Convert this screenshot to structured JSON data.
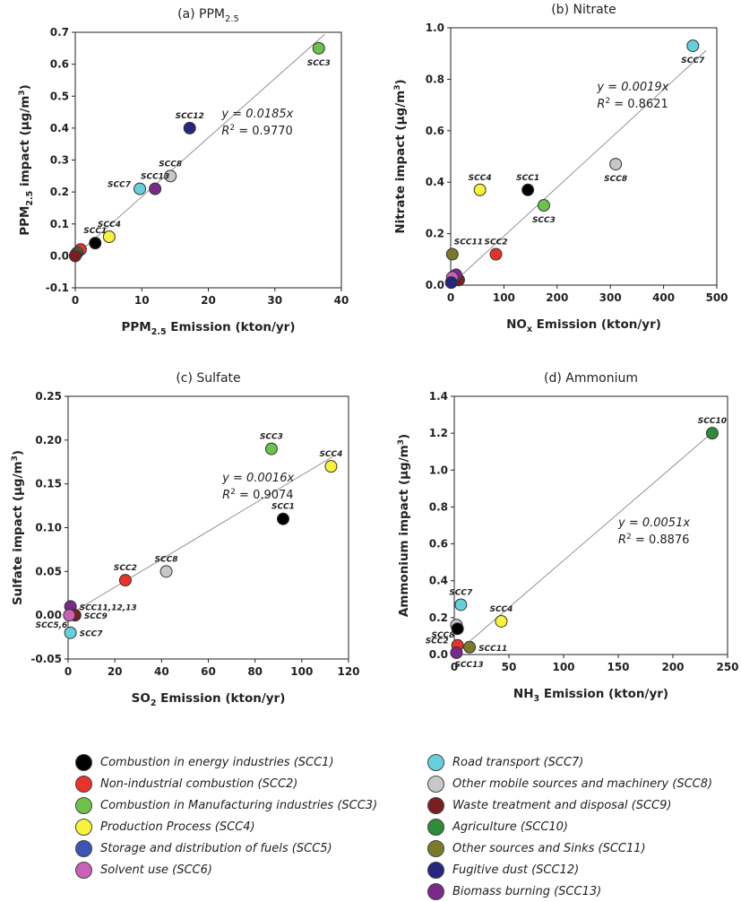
{
  "colors": {
    "SCC1": "#000000",
    "SCC2": "#e8322a",
    "SCC3": "#6cc24a",
    "SCC4": "#f7f23a",
    "SCC5": "#3d55b5",
    "SCC6": "#c861b8",
    "SCC7": "#66cfdc",
    "SCC8": "#c8c8c8",
    "SCC9": "#7a1f1f",
    "SCC10": "#2e8b3a",
    "SCC11": "#7a7a2a",
    "SCC12": "#262680",
    "SCC13": "#7a2a8a"
  },
  "legend": {
    "left": [
      {
        "key": "SCC1",
        "label": "Combustion in energy industries (SCC1)"
      },
      {
        "key": "SCC2",
        "label": "Non-industrial combustion (SCC2)"
      },
      {
        "key": "SCC3",
        "label": "Combustion in Manufacturing industries (SCC3)"
      },
      {
        "key": "SCC4",
        "label": "Production Process (SCC4)"
      },
      {
        "key": "SCC5",
        "label": "Storage and distribution of fuels (SCC5)"
      },
      {
        "key": "SCC6",
        "label": "Solvent use (SCC6)"
      }
    ],
    "right": [
      {
        "key": "SCC7",
        "label": "Road transport (SCC7)"
      },
      {
        "key": "SCC8",
        "label": "Other mobile sources and machinery (SCC8)"
      },
      {
        "key": "SCC9",
        "label": "Waste treatment and disposal (SCC9)"
      },
      {
        "key": "SCC10",
        "label": "Agriculture (SCC10)"
      },
      {
        "key": "SCC11",
        "label": "Other sources and Sinks (SCC11)"
      },
      {
        "key": "SCC12",
        "label": "Fugitive dust (SCC12)"
      },
      {
        "key": "SCC13",
        "label": "Biomass burning (SCC13)"
      }
    ]
  },
  "chart_data": [
    {
      "type": "scatter",
      "title": "(a) PPM",
      "title_sub": "2.5",
      "xlabel": "PPM",
      "xlabel_sub": "2.5",
      "xlabel_rest": " Emission (kton/yr)",
      "ylabel": "PPM",
      "ylabel_sub": "2.5",
      "ylabel_rest": " impact (μg/m",
      "ylabel_sup": "3",
      "ylabel_end": ")",
      "xlim": [
        0,
        40
      ],
      "ylim": [
        -0.1,
        0.7
      ],
      "xticks": [
        0,
        10,
        20,
        30,
        40
      ],
      "yticks": [
        -0.1,
        0,
        0.1,
        0.2,
        0.3,
        0.4,
        0.5,
        0.6,
        0.7
      ],
      "ytick_labels": [
        "-0.1",
        "0.0",
        "0.1",
        "0.2",
        "0.3",
        "0.4",
        "0.5",
        "0.6",
        "0.7"
      ],
      "fit": {
        "slope": 0.0185,
        "x_range": [
          0,
          37.5
        ]
      },
      "equation": "y = 0.0185x",
      "r2_label": "R",
      "r2_value": " = 0.9770",
      "points": [
        {
          "key": "SCC3",
          "x": 36.6,
          "y": 0.65,
          "label": "SCC3",
          "label_pos": "below"
        },
        {
          "key": "SCC12",
          "x": 17.2,
          "y": 0.4,
          "label": "SCC12",
          "label_pos": "above"
        },
        {
          "key": "SCC8",
          "x": 14.3,
          "y": 0.25,
          "label": "SCC8",
          "label_pos": "above"
        },
        {
          "key": "SCC13",
          "x": 12.0,
          "y": 0.21,
          "label": "SCC13",
          "label_pos": "above"
        },
        {
          "key": "SCC7",
          "x": 9.7,
          "y": 0.21,
          "label": "SCC7",
          "label_pos": "left"
        },
        {
          "key": "SCC4",
          "x": 5.1,
          "y": 0.06,
          "label": "SCC4",
          "label_pos": "above"
        },
        {
          "key": "SCC1",
          "x": 3.0,
          "y": 0.04,
          "label": "SCC1",
          "label_pos": "above"
        },
        {
          "key": "SCC2",
          "x": 0.8,
          "y": 0.02,
          "label": "",
          "label_pos": "none"
        },
        {
          "key": "SCC10",
          "x": 0.3,
          "y": 0.01,
          "label": "",
          "label_pos": "none"
        },
        {
          "key": "SCC11",
          "x": 0.1,
          "y": 0.005,
          "label": "",
          "label_pos": "none"
        },
        {
          "key": "SCC9",
          "x": 0.0,
          "y": 0.0,
          "label": "",
          "label_pos": "none"
        }
      ]
    },
    {
      "type": "scatter",
      "title": "(b) Nitrate",
      "xlabel": "NO",
      "xlabel_sub": "x",
      "xlabel_rest": " Emission (kton/yr)",
      "ylabel": "Nitrate impact (μg/m",
      "ylabel_sup": "3",
      "ylabel_end": ")",
      "xlim": [
        0,
        500
      ],
      "ylim": [
        0,
        1.0
      ],
      "xticks": [
        0,
        100,
        200,
        300,
        400,
        500
      ],
      "yticks": [
        0,
        0.2,
        0.4,
        0.6,
        0.8,
        1.0
      ],
      "ytick_labels": [
        "0.0",
        "0.2",
        "0.4",
        "0.6",
        "0.8",
        "1.0"
      ],
      "fit": {
        "slope": 0.0019,
        "x_range": [
          0,
          480
        ]
      },
      "equation": "y = 0.0019x",
      "r2_label": "R",
      "r2_value": " = 0.8621",
      "points": [
        {
          "key": "SCC7",
          "x": 455,
          "y": 0.93,
          "label": "SCC7",
          "label_pos": "below"
        },
        {
          "key": "SCC8",
          "x": 310,
          "y": 0.47,
          "label": "SCC8",
          "label_pos": "below"
        },
        {
          "key": "SCC1",
          "x": 145,
          "y": 0.37,
          "label": "SCC1",
          "label_pos": "above"
        },
        {
          "key": "SCC4",
          "x": 55,
          "y": 0.37,
          "label": "SCC4",
          "label_pos": "above"
        },
        {
          "key": "SCC3",
          "x": 175,
          "y": 0.31,
          "label": "SCC3",
          "label_pos": "below"
        },
        {
          "key": "SCC2",
          "x": 85,
          "y": 0.12,
          "label": "SCC2",
          "label_pos": "above"
        },
        {
          "key": "SCC11",
          "x": 3,
          "y": 0.12,
          "label": "SCC11",
          "label_pos": "aboveright"
        },
        {
          "key": "SCC9",
          "x": 15,
          "y": 0.02,
          "label": "",
          "label_pos": "none"
        },
        {
          "key": "SCC13",
          "x": 10,
          "y": 0.04,
          "label": "",
          "label_pos": "none"
        },
        {
          "key": "SCC6",
          "x": 3,
          "y": 0.03,
          "label": "",
          "label_pos": "none"
        },
        {
          "key": "SCC12",
          "x": 1,
          "y": 0.01,
          "label": "",
          "label_pos": "none"
        }
      ]
    },
    {
      "type": "scatter",
      "title": "(c) Sulfate",
      "xlabel": "SO",
      "xlabel_sub": "2",
      "xlabel_rest": " Emission (kton/yr)",
      "ylabel": "Sulfate impact (μg/m",
      "ylabel_sup": "3",
      "ylabel_end": ")",
      "xlim": [
        0,
        120
      ],
      "ylim": [
        -0.05,
        0.25
      ],
      "xticks": [
        0,
        20,
        40,
        60,
        80,
        100,
        120
      ],
      "yticks": [
        -0.05,
        0,
        0.05,
        0.1,
        0.15,
        0.2,
        0.25
      ],
      "ytick_labels": [
        "-0.05",
        "0.00",
        "0.05",
        "0.10",
        "0.15",
        "0.20",
        "0.25"
      ],
      "fit": {
        "slope": 0.0016,
        "x_range": [
          0,
          113
        ]
      },
      "equation": "y = 0.0016x",
      "r2_label": "R",
      "r2_value": " = 0.9074",
      "points": [
        {
          "key": "SCC3",
          "x": 87,
          "y": 0.19,
          "label": "SCC3",
          "label_pos": "above"
        },
        {
          "key": "SCC4",
          "x": 112.5,
          "y": 0.17,
          "label": "SCC4",
          "label_pos": "above"
        },
        {
          "key": "SCC1",
          "x": 92,
          "y": 0.11,
          "label": "SCC1",
          "label_pos": "above"
        },
        {
          "key": "SCC8",
          "x": 42,
          "y": 0.05,
          "label": "SCC8",
          "label_pos": "above"
        },
        {
          "key": "SCC2",
          "x": 24.5,
          "y": 0.04,
          "label": "SCC2",
          "label_pos": "above"
        },
        {
          "key": "SCC13",
          "x": 1,
          "y": 0.01,
          "label": "SCC11,12,13",
          "label_pos": "right"
        },
        {
          "key": "SCC9",
          "x": 3,
          "y": 0.0,
          "label": "SCC9",
          "label_pos": "right"
        },
        {
          "key": "SCC6",
          "x": 0.5,
          "y": 0.0,
          "label": "SCC5,6",
          "label_pos": "belowleft"
        },
        {
          "key": "SCC7",
          "x": 1,
          "y": -0.02,
          "label": "SCC7",
          "label_pos": "right"
        }
      ]
    },
    {
      "type": "scatter",
      "title": "(d) Ammonium",
      "xlabel": "NH",
      "xlabel_sub": "3",
      "xlabel_rest": " Emission (kton/yr)",
      "ylabel": "Ammonium impact (μg/m",
      "ylabel_sup": "3",
      "ylabel_end": ")",
      "xlim": [
        0,
        250
      ],
      "ylim": [
        0,
        1.4
      ],
      "xticks": [
        0,
        50,
        100,
        150,
        200,
        250
      ],
      "yticks": [
        0,
        0.2,
        0.4,
        0.6,
        0.8,
        1.0,
        1.2,
        1.4
      ],
      "ytick_labels": [
        "0.0",
        "0.2",
        "0.4",
        "0.6",
        "0.8",
        "1.0",
        "1.2",
        "1.4"
      ],
      "fit": {
        "slope": 0.0051,
        "x_range": [
          0,
          237
        ]
      },
      "equation": "y = 0.0051x",
      "r2_label": "R",
      "r2_value": " = 0.8876",
      "points": [
        {
          "key": "SCC10",
          "x": 236,
          "y": 1.2,
          "label": "SCC10",
          "label_pos": "above"
        },
        {
          "key": "SCC7",
          "x": 6,
          "y": 0.27,
          "label": "SCC7",
          "label_pos": "above"
        },
        {
          "key": "SCC4",
          "x": 43,
          "y": 0.18,
          "label": "SCC4",
          "label_pos": "above"
        },
        {
          "key": "SCC8",
          "x": 2,
          "y": 0.16,
          "label": "SCC8",
          "label_pos": "belowleft"
        },
        {
          "key": "SCC1",
          "x": 3,
          "y": 0.14,
          "label": "",
          "label_pos": "none"
        },
        {
          "key": "SCC2",
          "x": 3,
          "y": 0.05,
          "label": "SCC2",
          "label_pos": "left"
        },
        {
          "key": "SCC11",
          "x": 14,
          "y": 0.04,
          "label": "SCC11",
          "label_pos": "right"
        },
        {
          "key": "SCC13",
          "x": 2,
          "y": 0.01,
          "label": "SCC13",
          "label_pos": "belowright"
        }
      ]
    }
  ]
}
